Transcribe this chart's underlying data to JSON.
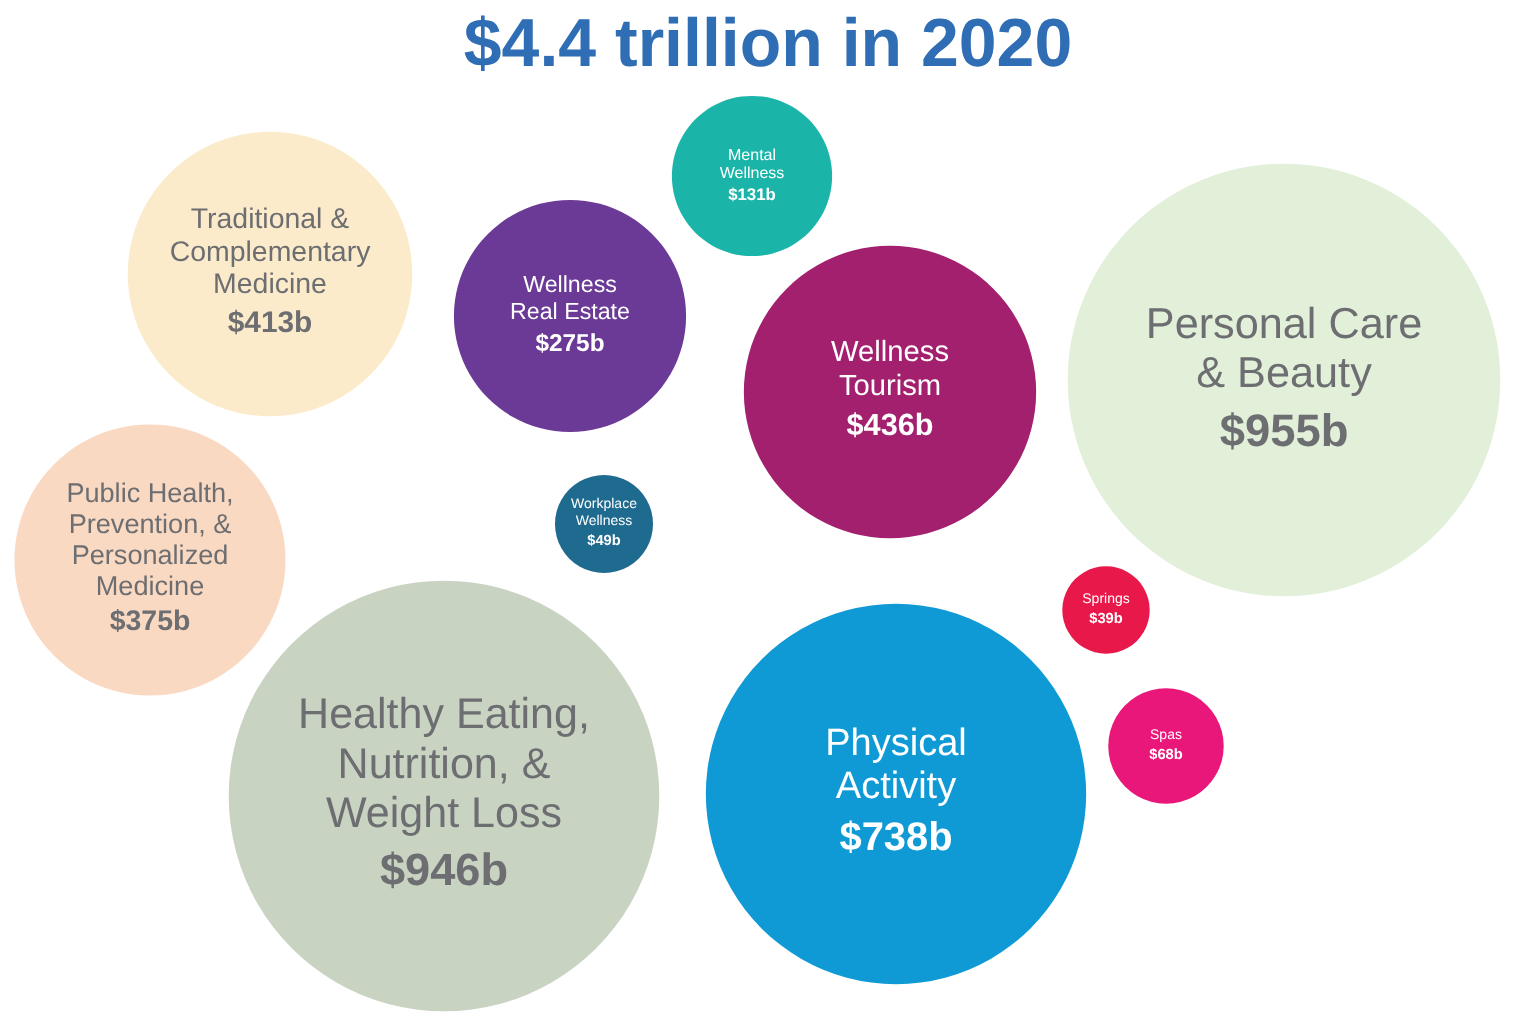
{
  "chart_data": {
    "type": "other",
    "title": "$4.4 trillion in 2020",
    "categories": [
      "Traditional &\nComplementary\nMedicine",
      "Mental\nWellness",
      "Wellness\nReal Estate",
      "Wellness\nTourism",
      "Personal Care\n& Beauty",
      "Public Health,\nPrevention, &\nPersonalized\nMedicine",
      "Workplace\nWellness",
      "Springs",
      "Spas",
      "Healthy Eating,\nNutrition, &\nWeight Loss",
      "Physical\nActivity"
    ],
    "values": [
      413,
      131,
      275,
      436,
      955,
      375,
      49,
      39,
      68,
      946,
      738
    ],
    "value_labels": [
      "$413b",
      "$131b",
      "$275b",
      "$436b",
      "$955b",
      "$375b",
      "$49b",
      "$39b",
      "$68b",
      "$946b",
      "$738b"
    ],
    "colors": [
      "#fcebcb",
      "#1ab5a8",
      "#6b3a96",
      "#a3206f",
      "#e2efd9",
      "#fad9c2",
      "#1f6a8f",
      "#e8194a",
      "#e9177a",
      "#c9d3c2",
      "#0f9ad6"
    ]
  }
}
